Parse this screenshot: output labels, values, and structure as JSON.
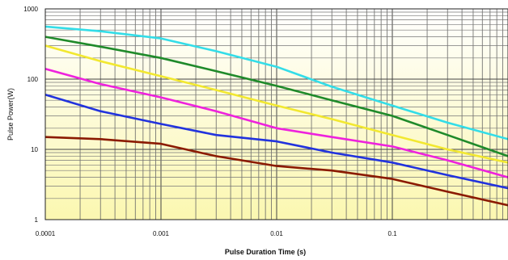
{
  "chart_data": {
    "type": "line",
    "title": "",
    "xlabel": "Pulse Duration Time (s)",
    "ylabel": "Pulse Power(W)",
    "xscale": "log",
    "yscale": "log",
    "xlim": [
      0.0001,
      1
    ],
    "ylim": [
      1,
      1000
    ],
    "grid": true,
    "legend": "none",
    "background_gradient": [
      "#ffffff",
      "#fbf7b0"
    ],
    "xticks": [
      {
        "value": 0.0001,
        "label": "0.0001"
      },
      {
        "value": 0.001,
        "label": "0.001"
      },
      {
        "value": 0.01,
        "label": "0.01"
      },
      {
        "value": 0.1,
        "label": "0.1"
      }
    ],
    "yticks": [
      {
        "value": 1,
        "label": "1"
      },
      {
        "value": 10,
        "label": "10"
      },
      {
        "value": 100,
        "label": "100"
      },
      {
        "value": 1000,
        "label": "1000"
      }
    ],
    "series": [
      {
        "color": "#33dde8",
        "x": [
          0.0001,
          0.0003,
          0.001,
          0.003,
          0.01,
          0.03,
          0.1,
          0.3,
          1
        ],
        "y": [
          560,
          480,
          380,
          250,
          150,
          78,
          42,
          24,
          14
        ]
      },
      {
        "color": "#1f8a2a",
        "x": [
          0.0001,
          0.0003,
          0.001,
          0.003,
          0.01,
          0.03,
          0.1,
          0.3,
          1
        ],
        "y": [
          400,
          290,
          200,
          130,
          80,
          50,
          30,
          16,
          8
        ]
      },
      {
        "color": "#f2e830",
        "x": [
          0.0001,
          0.0003,
          0.001,
          0.003,
          0.01,
          0.03,
          0.1,
          0.3,
          1
        ],
        "y": [
          300,
          180,
          110,
          70,
          42,
          27,
          16,
          10,
          6.5
        ]
      },
      {
        "color": "#ee22dd",
        "x": [
          0.0001,
          0.0003,
          0.001,
          0.003,
          0.01,
          0.03,
          0.1,
          0.3,
          1
        ],
        "y": [
          140,
          85,
          55,
          35,
          20,
          15,
          11,
          7,
          4
        ]
      },
      {
        "color": "#2233dd",
        "x": [
          0.0001,
          0.0003,
          0.001,
          0.003,
          0.01,
          0.03,
          0.1,
          0.3,
          1
        ],
        "y": [
          60,
          35,
          23,
          16,
          13,
          9,
          6.5,
          4.3,
          2.8
        ]
      },
      {
        "color": "#8b1a00",
        "x": [
          0.0001,
          0.0003,
          0.001,
          0.003,
          0.01,
          0.03,
          0.1,
          0.3,
          1
        ],
        "y": [
          15,
          14,
          12,
          8,
          5.8,
          5,
          3.8,
          2.5,
          1.6
        ]
      }
    ]
  }
}
